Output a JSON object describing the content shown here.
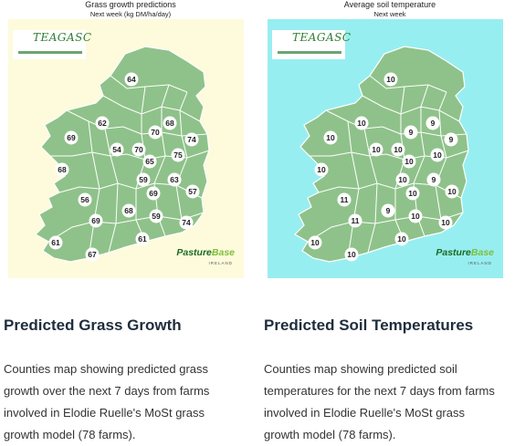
{
  "colors": {
    "grass_panel_bg": "#fdfbdc",
    "soil_panel_bg": "#97eef0",
    "land": "#8fc28a",
    "border": "#ffffff",
    "heading": "#1f2d3d",
    "text": "#333333"
  },
  "grass_card": {
    "map_title": "Grass growth predictions",
    "map_subtitle": "Next week (kg DM/ha/day)",
    "logo_text": "TEAGASC",
    "partner_logo": {
      "pasture": "Pasture",
      "base": "Base",
      "sub": "IRELAND"
    },
    "heading": "Predicted Grass Growth",
    "description": "Counties map showing predicted grass growth over the next 7 days from farms involved in Elodie Ruelle's MoSt grass growth model (78 farms).",
    "values": [
      "64",
      "62",
      "68",
      "74",
      "70",
      "69",
      "54",
      "70",
      "75",
      "65",
      "68",
      "59",
      "63",
      "57",
      "56",
      "69",
      "68",
      "59",
      "74",
      "69",
      "61",
      "61",
      "67"
    ]
  },
  "soil_card": {
    "map_title": "Average soil temperature",
    "map_subtitle": "Next week",
    "logo_text": "TEAGASC",
    "partner_logo": {
      "pasture": "Pasture",
      "base": "Base",
      "sub": "IRELAND"
    },
    "heading": "Predicted Soil Temperatures",
    "description": "Counties map showing predicted soil temperatures for the next 7 days from farms involved in Elodie Ruelle's MoSt grass growth model (78 farms).",
    "values": [
      "10",
      "10",
      "9",
      "9",
      "9",
      "10",
      "10",
      "10",
      "10",
      "10",
      "10",
      "10",
      "9",
      "10",
      "11",
      "10",
      "9",
      "10",
      "10",
      "11",
      "10",
      "10",
      "10"
    ]
  }
}
